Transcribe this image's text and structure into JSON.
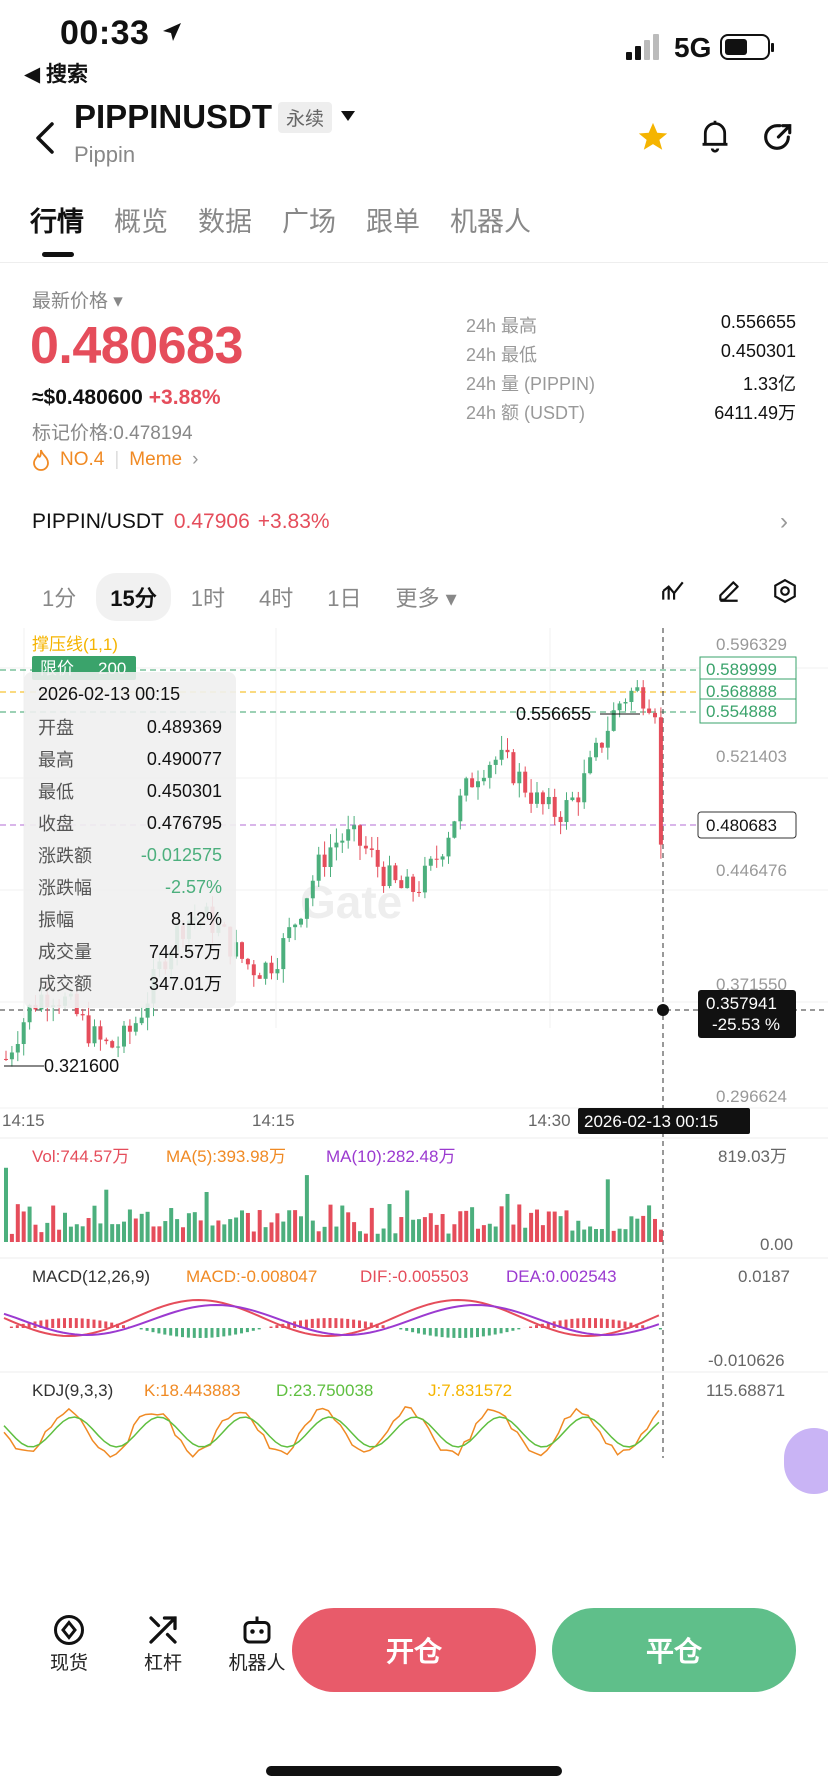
{
  "status_bar": {
    "time": "00:33",
    "back_label": "◀ 搜索",
    "network": "5G"
  },
  "header": {
    "symbol": "PIPPINUSDT",
    "contract_tag": "永续",
    "subtitle": "Pippin"
  },
  "tabs": [
    "行情",
    "概览",
    "数据",
    "广场",
    "跟单",
    "机器人"
  ],
  "price": {
    "latest_label": "最新价格 ▾",
    "last": "0.480683",
    "usd": "≈$0.480600",
    "change": "+3.88%",
    "mark_label": "标记价格:",
    "mark_value": "0.478194",
    "rank": "NO.4",
    "category": "Meme"
  },
  "stats24h": [
    {
      "k": "24h  最高",
      "v": "0.556655"
    },
    {
      "k": "24h  最低",
      "v": "0.450301"
    },
    {
      "k": "24h  量 (PIPPIN)",
      "v": "1.33亿"
    },
    {
      "k": "24h  额 (USDT)",
      "v": "6411.49万"
    }
  ],
  "spot": {
    "pair": "PIPPIN/USDT",
    "price": "0.47906",
    "change": "+3.83%"
  },
  "timeframes": [
    "1分",
    "15分",
    "1时",
    "4时",
    "1日",
    "更多 ▾"
  ],
  "ohlc": {
    "date": "2026-02-13 00:15",
    "rows": [
      {
        "k": "开盘",
        "v": "0.489369"
      },
      {
        "k": "最高",
        "v": "0.490077"
      },
      {
        "k": "最低",
        "v": "0.450301"
      },
      {
        "k": "收盘",
        "v": "0.476795"
      },
      {
        "k": "涨跌额",
        "v": "-0.012575"
      },
      {
        "k": "涨跌幅",
        "v": "-2.57%"
      },
      {
        "k": "振幅",
        "v": "8.12%"
      },
      {
        "k": "成交量",
        "v": "744.57万"
      },
      {
        "k": "成交额",
        "v": "347.01万"
      }
    ]
  },
  "chart": {
    "overlay_label": "撑压线(1,1)",
    "limit_label": "限价",
    "limit_qty": "200",
    "y_labels": [
      "0.596329",
      "0.521403",
      "0.446476",
      "0.371550",
      "0.296624"
    ],
    "tags": [
      "0.589999",
      "0.568888",
      "0.554888"
    ],
    "current": "0.480683",
    "crosshair_price": "0.357941",
    "crosshair_pct": "-25.53 %",
    "high_label": "0.556655",
    "low_label": "0.321600",
    "x_labels": [
      "14:15",
      "14:15",
      "14:30"
    ],
    "crosshair_time": "2026-02-13 00:15",
    "watermark": "Gate",
    "vol": {
      "vol": "Vol:744.57万",
      "ma5": "MA(5):393.98万",
      "ma10": "MA(10):282.48万",
      "max": "819.03万",
      "min": "0.00"
    },
    "macd": {
      "label": "MACD(12,26,9)",
      "macd": "MACD:-0.008047",
      "dif": "DIF:-0.005503",
      "dea": "DEA:0.002543",
      "max": "0.0187",
      "min": "-0.010626"
    },
    "kdj": {
      "label": "KDJ(9,3,3)",
      "k": "K:18.443883",
      "d": "D:23.750038",
      "j": "J:7.831572",
      "max": "115.68871"
    }
  },
  "bottom_nav": [
    "现货",
    "杠杆",
    "机器人"
  ],
  "actions": {
    "open": "开仓",
    "close": "平仓"
  },
  "colors": {
    "up": "#e54d5b",
    "down": "#4caf7d",
    "accent": "#f5b400"
  }
}
